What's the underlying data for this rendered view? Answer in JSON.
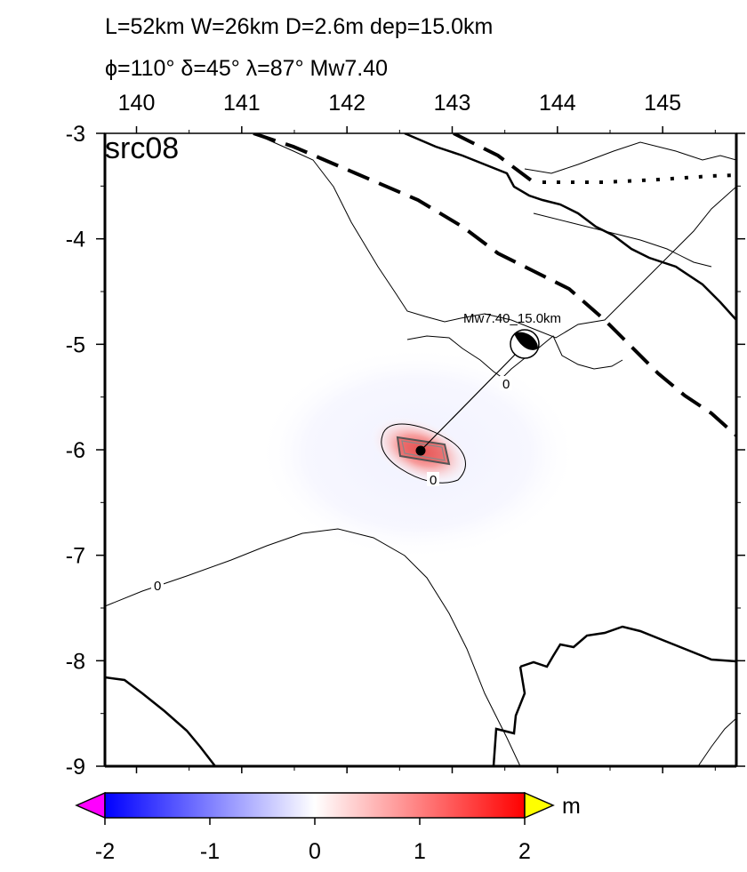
{
  "header": {
    "line1": "L=52km W=26km D=2.6m dep=15.0km",
    "line2": "ϕ=110° δ=45° λ=87° Mw7.40"
  },
  "map": {
    "panel_label": "src08",
    "lon_ticks": [
      "140",
      "141",
      "142",
      "143",
      "144",
      "145"
    ],
    "lat_ticks": [
      "-3",
      "-4",
      "-5",
      "-6",
      "-7",
      "-8",
      "-9"
    ],
    "lon_range": [
      139.7,
      145.7
    ],
    "lat_range": [
      -9,
      -3
    ],
    "epicenter": {
      "lon": 142.7,
      "lat": -6.0
    },
    "beachball": {
      "label": "Mw7.40_15.0km",
      "lon": 143.7,
      "lat": -5.0
    },
    "contour_labels": [
      "0",
      "0",
      "0"
    ],
    "colors": {
      "uplift": "#ff0000",
      "subsidence": "#0000ff",
      "coast": "#000000"
    }
  },
  "colorbar": {
    "unit": "m",
    "ticks": [
      "-2",
      "-1",
      "0",
      "1",
      "2"
    ],
    "range": [
      -2,
      2
    ],
    "colors": {
      "min": "#0000ff",
      "mid": "#ffffff",
      "max": "#ff0000",
      "under": "#ff00ff",
      "over": "#ffff00"
    }
  }
}
